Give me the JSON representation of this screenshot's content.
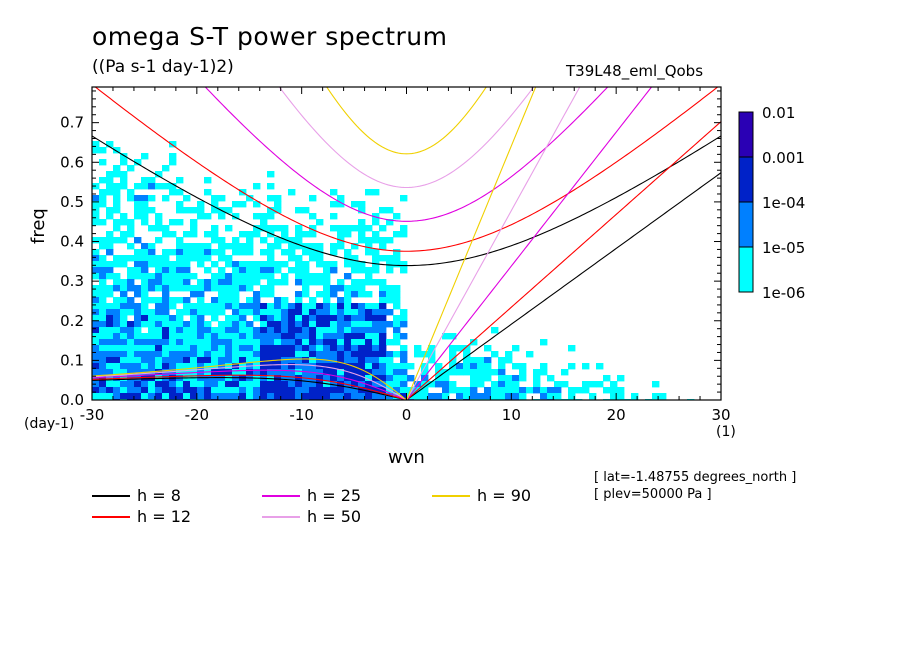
{
  "title": "omega S-T power spectrum",
  "units": "((Pa s-1 day-1)2)",
  "run_id": "T39L48_eml_Qobs",
  "x_unit_left": "(day-1)",
  "x_unit_right": "(1)",
  "info_lines": [
    "[ lat=-1.48755 degrees_north ]",
    "[ plev=50000 Pa ]"
  ],
  "colors": {
    "c1e6": "#00ffff",
    "c1e5": "#0080ff",
    "c1e4": "#0022c8",
    "c1e3": "#2a00b4",
    "h8": "#000000",
    "h12": "#ff0000",
    "h25": "#e000e0",
    "h50": "#e8a0e8",
    "h90": "#f0d000"
  },
  "chart_data": {
    "type": "heatmap",
    "title": "omega S-T power spectrum",
    "subtitle": "((Pa s-1 day-1)2)",
    "xlabel": "wvn",
    "ylabel": "freq",
    "xlim": [
      -30,
      30
    ],
    "ylim": [
      0,
      0.79
    ],
    "xticks": [
      "-30",
      "-20",
      "-10",
      "0",
      "10",
      "20",
      "30"
    ],
    "yticks": [
      "0.0",
      "0.1",
      "0.2",
      "0.3",
      "0.4",
      "0.5",
      "0.6",
      "0.7"
    ],
    "colorbar": {
      "levels": [
        "1e-06",
        "1e-05",
        "1e-04",
        "0.001",
        "0.01"
      ],
      "colors": [
        "#00ffff",
        "#0080ff",
        "#0022c8",
        "#2a00b4"
      ]
    },
    "dispersion_curves": [
      {
        "name": "h =  8",
        "equivalent_depth": 8,
        "color": "#000000"
      },
      {
        "name": "h = 12",
        "equivalent_depth": 12,
        "color": "#ff0000"
      },
      {
        "name": "h = 25",
        "equivalent_depth": 25,
        "color": "#e000e0"
      },
      {
        "name": "h = 50",
        "equivalent_depth": 50,
        "color": "#e8a0e8"
      },
      {
        "name": "h = 90",
        "equivalent_depth": 90,
        "color": "#f0d000"
      }
    ]
  }
}
